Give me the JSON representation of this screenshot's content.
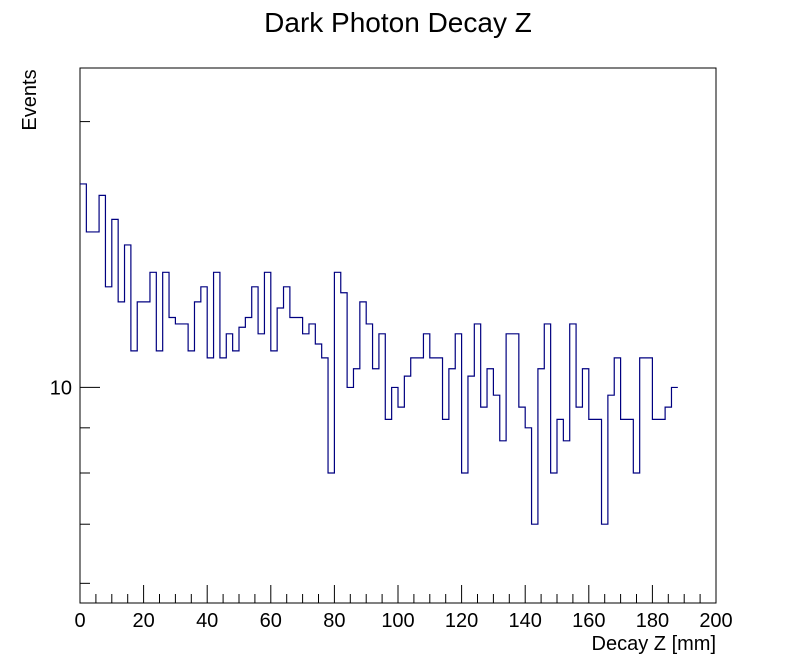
{
  "chart_data": {
    "type": "histogram",
    "title": "Dark Photon Decay Z",
    "xlabel": "Decay Z [mm]",
    "ylabel": "Events",
    "xlim": [
      0,
      200
    ],
    "ylim": [
      5.7,
      23
    ],
    "y_scale": "log",
    "x_ticks": [
      0,
      20,
      40,
      60,
      80,
      100,
      120,
      140,
      160,
      180,
      200
    ],
    "x_tick_labels": [
      "0",
      "20",
      "40",
      "60",
      "80",
      "100",
      "120",
      "140",
      "160",
      "180",
      "200"
    ],
    "y_tick_labels": [
      {
        "value": 10,
        "label": "10"
      }
    ],
    "series": [
      {
        "color": "#000080",
        "bin_edges_start": 0,
        "bin_width": 2,
        "values": [
          17,
          15,
          15,
          16.5,
          13,
          15.5,
          12.5,
          14.5,
          11,
          12.5,
          12.5,
          13.5,
          11,
          13.5,
          12,
          11.8,
          11.8,
          11,
          12.5,
          13,
          10.8,
          13.5,
          10.8,
          11.5,
          11,
          11.7,
          12,
          13,
          11.5,
          13.5,
          11,
          12.3,
          13,
          12,
          12,
          11.5,
          11.8,
          11.2,
          10.8,
          8,
          13.5,
          12.8,
          10,
          10.5,
          12.5,
          11.8,
          10.5,
          11.5,
          9.2,
          10,
          9.5,
          10.3,
          10.8,
          10.8,
          11.5,
          10.8,
          10.8,
          9.2,
          10.5,
          11.5,
          8,
          10.3,
          11.8,
          9.5,
          10.5,
          9.8,
          8.7,
          11.5,
          11.5,
          9.5,
          9,
          7,
          10.5,
          11.8,
          8,
          9.2,
          8.7,
          11.8,
          9.5,
          10.5,
          9.2,
          9.2,
          7,
          9.8,
          10.8,
          9.2,
          9.2,
          8,
          10.8,
          10.8,
          9.2,
          9.2,
          9.5,
          10
        ]
      }
    ]
  }
}
